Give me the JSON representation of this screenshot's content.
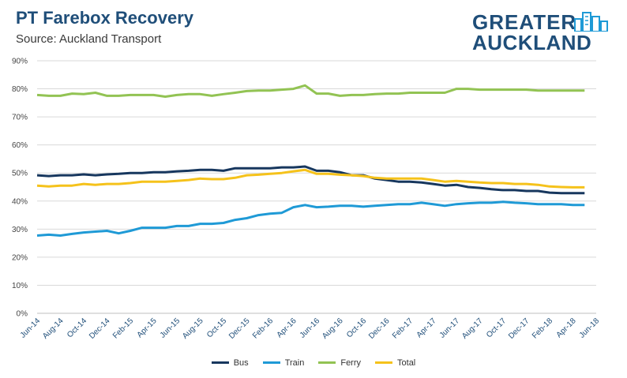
{
  "header": {
    "title": "PT Farebox Recovery",
    "subtitle": "Source: Auckland Transport"
  },
  "logo": {
    "line1": "GREATER",
    "line2": "AUCKLAND",
    "icon": "city-skyline-icon"
  },
  "colors": {
    "Bus": "#17375e",
    "Train": "#1f9ad6",
    "Ferry": "#92c353",
    "Total": "#f5c21b"
  },
  "chart_data": {
    "type": "line",
    "title": "PT Farebox Recovery",
    "subtitle": "Source: Auckland Transport",
    "xlabel": "",
    "ylabel": "",
    "ylim": [
      0,
      90
    ],
    "y_ticks": [
      "0%",
      "10%",
      "20%",
      "30%",
      "40%",
      "50%",
      "60%",
      "70%",
      "80%",
      "90%"
    ],
    "y_unit": "%",
    "grid": true,
    "legend": "bottom",
    "x_ticks": [
      "Jun-14",
      "Aug-14",
      "Oct-14",
      "Dec-14",
      "Feb-15",
      "Apr-15",
      "Jun-15",
      "Aug-15",
      "Oct-15",
      "Dec-15",
      "Feb-16",
      "Apr-16",
      "Jun-16",
      "Aug-16",
      "Oct-16",
      "Dec-16",
      "Feb-17",
      "Apr-17",
      "Jun-17",
      "Aug-17",
      "Oct-17",
      "Dec-17",
      "Feb-18",
      "Apr-18",
      "Jun-18"
    ],
    "x": [
      "Jun-14",
      "Jul-14",
      "Aug-14",
      "Sep-14",
      "Oct-14",
      "Nov-14",
      "Dec-14",
      "Jan-15",
      "Feb-15",
      "Mar-15",
      "Apr-15",
      "May-15",
      "Jun-15",
      "Jul-15",
      "Aug-15",
      "Sep-15",
      "Oct-15",
      "Nov-15",
      "Dec-15",
      "Jan-16",
      "Feb-16",
      "Mar-16",
      "Apr-16",
      "May-16",
      "Jun-16",
      "Jul-16",
      "Aug-16",
      "Sep-16",
      "Oct-16",
      "Nov-16",
      "Dec-16",
      "Jan-17",
      "Feb-17",
      "Mar-17",
      "Apr-17",
      "May-17",
      "Jun-17",
      "Jul-17",
      "Aug-17",
      "Sep-17",
      "Oct-17",
      "Nov-17",
      "Dec-17",
      "Jan-18",
      "Feb-18",
      "Mar-18",
      "Apr-18",
      "May-18"
    ],
    "series": [
      {
        "name": "Bus",
        "values": [
          49.2,
          48.9,
          49.2,
          49.2,
          49.5,
          49.2,
          49.5,
          49.7,
          50.0,
          50.0,
          50.3,
          50.3,
          50.6,
          50.8,
          51.1,
          51.1,
          50.8,
          51.7,
          51.7,
          51.7,
          51.7,
          52.0,
          52.0,
          52.3,
          50.8,
          50.8,
          50.3,
          49.2,
          49.2,
          48.0,
          47.5,
          46.9,
          46.9,
          46.6,
          46.1,
          45.5,
          45.8,
          45.0,
          44.7,
          44.2,
          43.9,
          43.9,
          43.6,
          43.6,
          43.0,
          42.8,
          42.8,
          42.8
        ]
      },
      {
        "name": "Train",
        "values": [
          27.7,
          28.0,
          27.7,
          28.3,
          28.8,
          29.1,
          29.4,
          28.5,
          29.4,
          30.5,
          30.5,
          30.5,
          31.1,
          31.1,
          31.9,
          31.9,
          32.2,
          33.3,
          33.9,
          35.0,
          35.5,
          35.8,
          37.8,
          38.6,
          37.8,
          38.0,
          38.3,
          38.3,
          38.0,
          38.3,
          38.6,
          38.9,
          38.9,
          39.4,
          38.9,
          38.3,
          38.9,
          39.2,
          39.4,
          39.4,
          39.7,
          39.4,
          39.2,
          38.9,
          38.9,
          38.9,
          38.6,
          38.6
        ]
      },
      {
        "name": "Ferry",
        "values": [
          77.8,
          77.5,
          77.5,
          78.3,
          78.1,
          78.6,
          77.5,
          77.5,
          77.8,
          77.8,
          77.8,
          77.2,
          77.8,
          78.1,
          78.1,
          77.5,
          78.1,
          78.6,
          79.2,
          79.4,
          79.4,
          79.7,
          80.0,
          81.2,
          78.3,
          78.3,
          77.5,
          77.8,
          77.8,
          78.1,
          78.3,
          78.3,
          78.6,
          78.6,
          78.6,
          78.6,
          80.0,
          80.0,
          79.7,
          79.7,
          79.7,
          79.7,
          79.7,
          79.4,
          79.4,
          79.4,
          79.4,
          79.4
        ]
      },
      {
        "name": "Total",
        "values": [
          45.5,
          45.2,
          45.5,
          45.5,
          46.1,
          45.8,
          46.1,
          46.1,
          46.4,
          46.9,
          46.9,
          46.9,
          47.2,
          47.5,
          48.0,
          47.8,
          47.8,
          48.3,
          49.2,
          49.4,
          49.7,
          50.0,
          50.6,
          51.1,
          49.7,
          49.7,
          49.4,
          49.2,
          48.9,
          48.3,
          48.0,
          48.0,
          48.0,
          48.0,
          47.5,
          46.9,
          47.2,
          46.9,
          46.6,
          46.4,
          46.4,
          46.1,
          46.1,
          45.8,
          45.2,
          45.0,
          44.9,
          44.9
        ]
      }
    ]
  }
}
